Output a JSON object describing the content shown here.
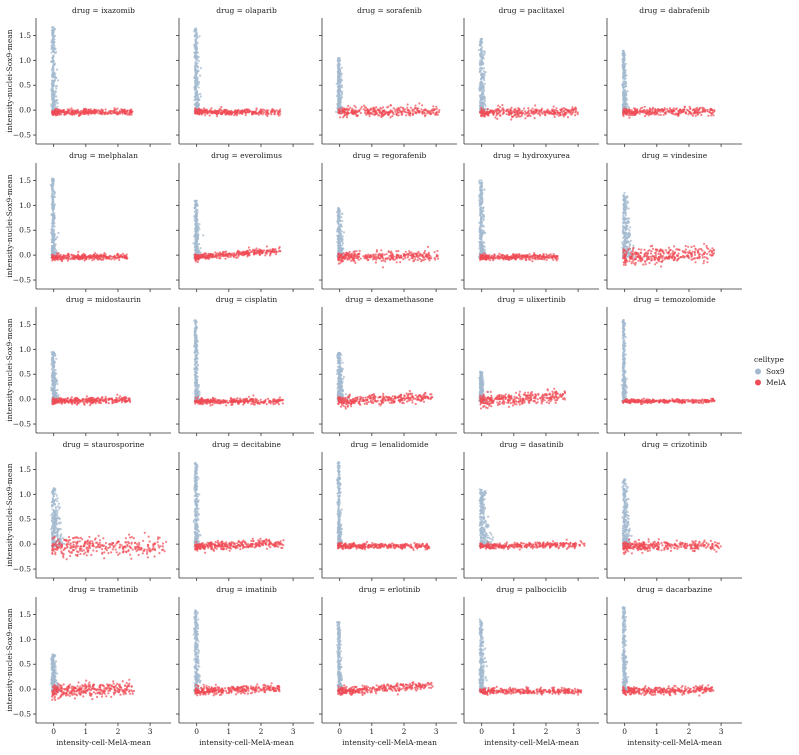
{
  "chart_data": {
    "type": "scatter",
    "facet_variable": "drug",
    "panel_title_template": "drug = {drug}",
    "panels": [
      "ixazomib",
      "olaparib",
      "sorafenib",
      "paclitaxel",
      "dabrafenib",
      "melphalan",
      "everolimus",
      "regorafenib",
      "hydroxyurea",
      "vindesine",
      "midostaurin",
      "cisplatin",
      "dexamethasone",
      "ulixertinib",
      "temozolomide",
      "staurosporine",
      "decitabine",
      "lenalidomide",
      "dasatinib",
      "crizotinib",
      "trametinib",
      "imatinib",
      "erlotinib",
      "palbociclib",
      "dacarbazine"
    ],
    "xlabel": "intensity-cell-MelA-mean",
    "ylabel": "intensity-nuclei-Sox9-mean",
    "xticks": [
      0,
      1,
      2,
      3
    ],
    "yticks": [
      -0.5,
      0.0,
      0.5,
      1.0,
      1.5
    ],
    "ytick_labels": [
      "−0.5",
      "0.0",
      "0.5",
      "1.0",
      "1.5"
    ],
    "xlim": [
      -0.55,
      3.65
    ],
    "ylim": [
      -0.68,
      1.85
    ],
    "legend": {
      "title": "celltype",
      "placement": "right",
      "entries": [
        {
          "name": "Sox9",
          "color": "#a3b9cf"
        },
        {
          "name": "MelA",
          "color": "#ef4c56"
        }
      ]
    },
    "series_shape_per_panel": [
      {
        "drug": "ixazomib",
        "sox9_ymax": 1.7,
        "sox9_spread": 0.08,
        "mela_xmax": 2.5,
        "mela_slope": 0.0,
        "mela_yspread": 0.03
      },
      {
        "drug": "olaparib",
        "sox9_ymax": 1.65,
        "sox9_spread": 0.07,
        "mela_xmax": 2.6,
        "mela_slope": 0.0,
        "mela_yspread": 0.03
      },
      {
        "drug": "sorafenib",
        "sox9_ymax": 1.05,
        "sox9_spread": 0.06,
        "mela_xmax": 3.1,
        "mela_slope": 0.01,
        "mela_yspread": 0.05
      },
      {
        "drug": "paclitaxel",
        "sox9_ymax": 1.45,
        "sox9_spread": 0.09,
        "mela_xmax": 3.0,
        "mela_slope": 0.0,
        "mela_yspread": 0.05
      },
      {
        "drug": "dabrafenib",
        "sox9_ymax": 1.2,
        "sox9_spread": 0.06,
        "mela_xmax": 2.8,
        "mela_slope": 0.01,
        "mela_yspread": 0.04
      },
      {
        "drug": "melphalan",
        "sox9_ymax": 1.55,
        "sox9_spread": 0.06,
        "mela_xmax": 2.3,
        "mela_slope": 0.0,
        "mela_yspread": 0.03
      },
      {
        "drug": "everolimus",
        "sox9_ymax": 1.1,
        "sox9_spread": 0.08,
        "mela_xmax": 2.6,
        "mela_slope": 0.05,
        "mela_yspread": 0.03
      },
      {
        "drug": "regorafenib",
        "sox9_ymax": 0.95,
        "sox9_spread": 0.07,
        "mela_xmax": 3.1,
        "mela_slope": 0.01,
        "mela_yspread": 0.05
      },
      {
        "drug": "hydroxyurea",
        "sox9_ymax": 1.5,
        "sox9_spread": 0.07,
        "mela_xmax": 2.4,
        "mela_slope": 0.0,
        "mela_yspread": 0.03
      },
      {
        "drug": "vindesine",
        "sox9_ymax": 1.25,
        "sox9_spread": 0.14,
        "mela_xmax": 2.8,
        "mela_slope": 0.03,
        "mela_yspread": 0.08
      },
      {
        "drug": "midostaurin",
        "sox9_ymax": 0.95,
        "sox9_spread": 0.08,
        "mela_xmax": 2.4,
        "mela_slope": 0.01,
        "mela_yspread": 0.03
      },
      {
        "drug": "cisplatin",
        "sox9_ymax": 1.6,
        "sox9_spread": 0.05,
        "mela_xmax": 2.7,
        "mela_slope": 0.0,
        "mela_yspread": 0.03
      },
      {
        "drug": "dexamethasone",
        "sox9_ymax": 0.95,
        "sox9_spread": 0.09,
        "mela_xmax": 2.9,
        "mela_slope": 0.03,
        "mela_yspread": 0.05
      },
      {
        "drug": "ulixertinib",
        "sox9_ymax": 0.55,
        "sox9_spread": 0.07,
        "mela_xmax": 2.6,
        "mela_slope": 0.04,
        "mela_yspread": 0.06
      },
      {
        "drug": "temozolomide",
        "sox9_ymax": 1.6,
        "sox9_spread": 0.05,
        "mela_xmax": 2.8,
        "mela_slope": 0.0,
        "mela_yspread": 0.02
      },
      {
        "drug": "staurosporine",
        "sox9_ymax": 1.15,
        "sox9_spread": 0.15,
        "mela_xmax": 3.5,
        "mela_slope": 0.0,
        "mela_yspread": 0.09
      },
      {
        "drug": "decitabine",
        "sox9_ymax": 1.65,
        "sox9_spread": 0.06,
        "mela_xmax": 2.7,
        "mela_slope": 0.02,
        "mela_yspread": 0.04
      },
      {
        "drug": "lenalidomide",
        "sox9_ymax": 1.65,
        "sox9_spread": 0.05,
        "mela_xmax": 2.8,
        "mela_slope": 0.0,
        "mela_yspread": 0.03
      },
      {
        "drug": "dasatinib",
        "sox9_ymax": 1.1,
        "sox9_spread": 0.15,
        "mela_xmax": 3.2,
        "mela_slope": 0.01,
        "mela_yspread": 0.03
      },
      {
        "drug": "crizotinib",
        "sox9_ymax": 1.3,
        "sox9_spread": 0.1,
        "mela_xmax": 3.0,
        "mela_slope": 0.0,
        "mela_yspread": 0.05
      },
      {
        "drug": "trametinib",
        "sox9_ymax": 0.7,
        "sox9_spread": 0.08,
        "mela_xmax": 2.5,
        "mela_slope": 0.02,
        "mela_yspread": 0.07
      },
      {
        "drug": "imatinib",
        "sox9_ymax": 1.6,
        "sox9_spread": 0.07,
        "mela_xmax": 2.6,
        "mela_slope": 0.02,
        "mela_yspread": 0.04
      },
      {
        "drug": "erlotinib",
        "sox9_ymax": 1.35,
        "sox9_spread": 0.06,
        "mela_xmax": 2.9,
        "mela_slope": 0.04,
        "mela_yspread": 0.04
      },
      {
        "drug": "palbociclib",
        "sox9_ymax": 1.4,
        "sox9_spread": 0.07,
        "mela_xmax": 3.1,
        "mela_slope": 0.0,
        "mela_yspread": 0.03
      },
      {
        "drug": "dacarbazine",
        "sox9_ymax": 1.65,
        "sox9_spread": 0.06,
        "mela_xmax": 2.8,
        "mela_slope": 0.01,
        "mela_yspread": 0.04
      }
    ]
  }
}
